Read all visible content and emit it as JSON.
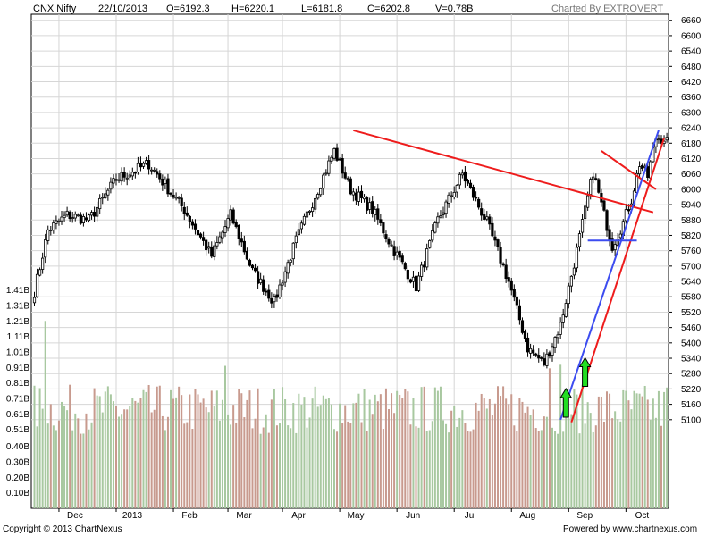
{
  "header": {
    "symbol": "CNX Nifty",
    "date": "22/10/2013",
    "open": "O=6192.3",
    "high": "H=6220.1",
    "low": "L=6181.8",
    "close": "C=6202.8",
    "volume": "V=0.78B",
    "credit": "Charted By EXTROVERT"
  },
  "footer": {
    "copyright": "Copyright © 2013 ChartNexus",
    "powered": "Powered by www.chartnexus.com"
  },
  "colors": {
    "background": "#ffffff",
    "grid": "#d6d6d6",
    "candle_up": "#ffffff",
    "candle_down": "#000000",
    "volume_up": "#a8c8a0",
    "volume_down": "#c89a8e",
    "trend_red": "#ee1c1c",
    "trend_blue": "#3c4cf0",
    "arrow_green": "#22dd22"
  },
  "chart_data": {
    "type": "candlestick",
    "price_axis": {
      "ticks": [
        "6660",
        "6600",
        "6540",
        "6480",
        "6420",
        "6360",
        "6300",
        "6240",
        "6180",
        "6120",
        "6060",
        "6000",
        "5940",
        "5880",
        "5820",
        "5760",
        "5700",
        "5640",
        "5580",
        "5520",
        "5460",
        "5400",
        "5340",
        "5280",
        "5220",
        "5160",
        "5100"
      ],
      "range": [
        5040,
        6680
      ]
    },
    "volume_axis": {
      "ticks": [
        "1.41B",
        "1.31B",
        "1.21B",
        "1.11B",
        "1.01B",
        "0.91B",
        "0.81B",
        "0.71B",
        "0.61B",
        "0.51B",
        "0.40B",
        "0.30B",
        "0.20B",
        "0.10B"
      ],
      "range": [
        0,
        1.5
      ]
    },
    "x_labels": [
      "Dec",
      "2013",
      "Feb",
      "Mar",
      "Apr",
      "May",
      "Jun",
      "Jul",
      "Aug",
      "Sep",
      "Oct"
    ],
    "x_label_bar_index": [
      9,
      30,
      51,
      71,
      91,
      112,
      133,
      154,
      175,
      196,
      217
    ],
    "anchors": [
      {
        "i": 0,
        "c": 5600
      },
      {
        "i": 5,
        "c": 5840
      },
      {
        "i": 12,
        "c": 5900
      },
      {
        "i": 20,
        "c": 5880
      },
      {
        "i": 30,
        "c": 6040
      },
      {
        "i": 42,
        "c": 6100
      },
      {
        "i": 55,
        "c": 5920
      },
      {
        "i": 65,
        "c": 5740
      },
      {
        "i": 72,
        "c": 5900
      },
      {
        "i": 80,
        "c": 5680
      },
      {
        "i": 88,
        "c": 5560
      },
      {
        "i": 96,
        "c": 5800
      },
      {
        "i": 110,
        "c": 6150
      },
      {
        "i": 116,
        "c": 6000
      },
      {
        "i": 124,
        "c": 5920
      },
      {
        "i": 132,
        "c": 5760
      },
      {
        "i": 140,
        "c": 5620
      },
      {
        "i": 148,
        "c": 5880
      },
      {
        "i": 157,
        "c": 6060
      },
      {
        "i": 166,
        "c": 5870
      },
      {
        "i": 174,
        "c": 5640
      },
      {
        "i": 181,
        "c": 5380
      },
      {
        "i": 187,
        "c": 5320
      },
      {
        "i": 193,
        "c": 5470
      },
      {
        "i": 199,
        "c": 5760
      },
      {
        "i": 205,
        "c": 6070
      },
      {
        "i": 208,
        "c": 5940
      },
      {
        "i": 212,
        "c": 5780
      },
      {
        "i": 216,
        "c": 5870
      },
      {
        "i": 219,
        "c": 5960
      },
      {
        "i": 222,
        "c": 6100
      },
      {
        "i": 225,
        "c": 6050
      },
      {
        "i": 228,
        "c": 6200
      }
    ],
    "last_bar": {
      "open": 6192.3,
      "high": 6220.1,
      "low": 6181.8,
      "close": 6202.8,
      "volume": 0.78
    },
    "annotations": [
      {
        "type": "line",
        "color": "red",
        "from": {
          "i": 117,
          "price": 6230
        },
        "to": {
          "i": 227,
          "price": 5910
        }
      },
      {
        "type": "line",
        "color": "red",
        "from": {
          "i": 197,
          "price": 5090
        },
        "to": {
          "i": 231,
          "price": 6200
        }
      },
      {
        "type": "line",
        "color": "red",
        "from": {
          "i": 208,
          "price": 6150
        },
        "to": {
          "i": 228,
          "price": 6000
        }
      },
      {
        "type": "line",
        "color": "blue",
        "from": {
          "i": 193,
          "price": 5100
        },
        "to": {
          "i": 229,
          "price": 6230
        }
      },
      {
        "type": "line",
        "color": "blue",
        "from": {
          "i": 203,
          "price": 5800
        },
        "to": {
          "i": 221,
          "price": 5800
        }
      },
      {
        "type": "arrow",
        "color": "green",
        "direction": "up",
        "at": {
          "i": 195,
          "price": 5110
        }
      },
      {
        "type": "arrow",
        "color": "green",
        "direction": "up",
        "at": {
          "i": 202,
          "price": 5230
        }
      }
    ]
  }
}
